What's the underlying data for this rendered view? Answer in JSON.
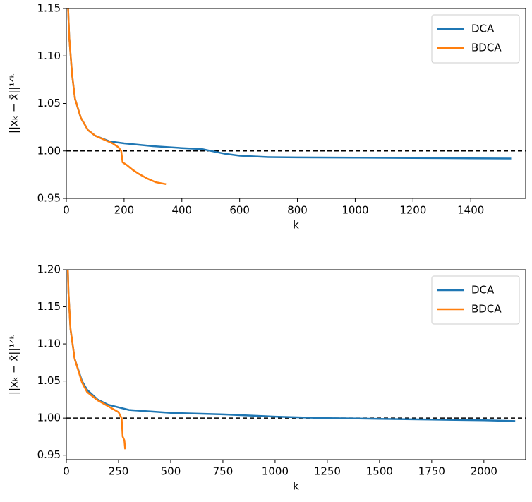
{
  "chart_data": [
    {
      "type": "line",
      "xlabel": "k",
      "ylabel": "||xₖ − x̄||¹ᐟᵏ",
      "xlim": [
        0,
        1590
      ],
      "ylim": [
        0.95,
        1.15
      ],
      "xticks": [
        0,
        200,
        400,
        600,
        800,
        1000,
        1200,
        1400
      ],
      "yticks": [
        0.95,
        {
          "value": 1.0,
          "label": "1.00"
        },
        1.05,
        {
          "value": 1.1,
          "label": "1.10"
        },
        1.15
      ],
      "hline": 1.0,
      "legend": "upper right",
      "series": [
        {
          "name": "DCA",
          "color": "#1f77b4",
          "x": [
            5,
            10,
            20,
            30,
            50,
            75,
            100,
            150,
            200,
            300,
            400,
            470,
            500,
            550,
            600,
            700,
            800,
            1000,
            1200,
            1400,
            1540
          ],
          "values": [
            1.16,
            1.12,
            1.08,
            1.055,
            1.035,
            1.022,
            1.016,
            1.01,
            1.008,
            1.005,
            1.003,
            1.002,
            1.0,
            0.997,
            0.995,
            0.9935,
            0.9932,
            0.993,
            0.9925,
            0.9922,
            0.992
          ]
        },
        {
          "name": "BDCA",
          "color": "#ff7f0e",
          "x": [
            5,
            10,
            20,
            30,
            50,
            75,
            100,
            130,
            160,
            180,
            190,
            195,
            210,
            230,
            250,
            280,
            310,
            345
          ],
          "values": [
            1.16,
            1.12,
            1.08,
            1.055,
            1.035,
            1.022,
            1.016,
            1.012,
            1.008,
            1.004,
            1.0,
            0.988,
            0.985,
            0.98,
            0.976,
            0.971,
            0.967,
            0.965
          ]
        }
      ]
    },
    {
      "type": "line",
      "xlabel": "k",
      "ylabel": "||xₖ − x̄||¹ᐟᵏ",
      "xlim": [
        0,
        2200
      ],
      "ylim": [
        0.944,
        1.2
      ],
      "xticks": [
        0,
        250,
        500,
        750,
        1000,
        1250,
        1500,
        1750,
        2000
      ],
      "yticks": [
        0.95,
        {
          "value": 1.0,
          "label": "1.00"
        },
        1.05,
        {
          "value": 1.1,
          "label": "1.10"
        },
        1.15,
        {
          "value": 1.2,
          "label": "1.20"
        }
      ],
      "hline": 1.0,
      "legend": "upper right",
      "series": [
        {
          "name": "DCA",
          "color": "#1f77b4",
          "x": [
            3,
            10,
            20,
            40,
            75,
            100,
            150,
            200,
            300,
            500,
            750,
            1000,
            1250,
            1500,
            1750,
            2000,
            2150
          ],
          "values": [
            1.25,
            1.17,
            1.12,
            1.08,
            1.05,
            1.038,
            1.025,
            1.018,
            1.011,
            1.007,
            1.005,
            1.002,
            1.0,
            0.999,
            0.998,
            0.997,
            0.996
          ]
        },
        {
          "name": "BDCA",
          "color": "#ff7f0e",
          "x": [
            3,
            10,
            20,
            40,
            75,
            100,
            150,
            200,
            250,
            265,
            270,
            278,
            282
          ],
          "values": [
            1.25,
            1.17,
            1.12,
            1.08,
            1.048,
            1.035,
            1.024,
            1.016,
            1.008,
            1.0,
            0.975,
            0.97,
            0.958
          ]
        }
      ]
    }
  ]
}
